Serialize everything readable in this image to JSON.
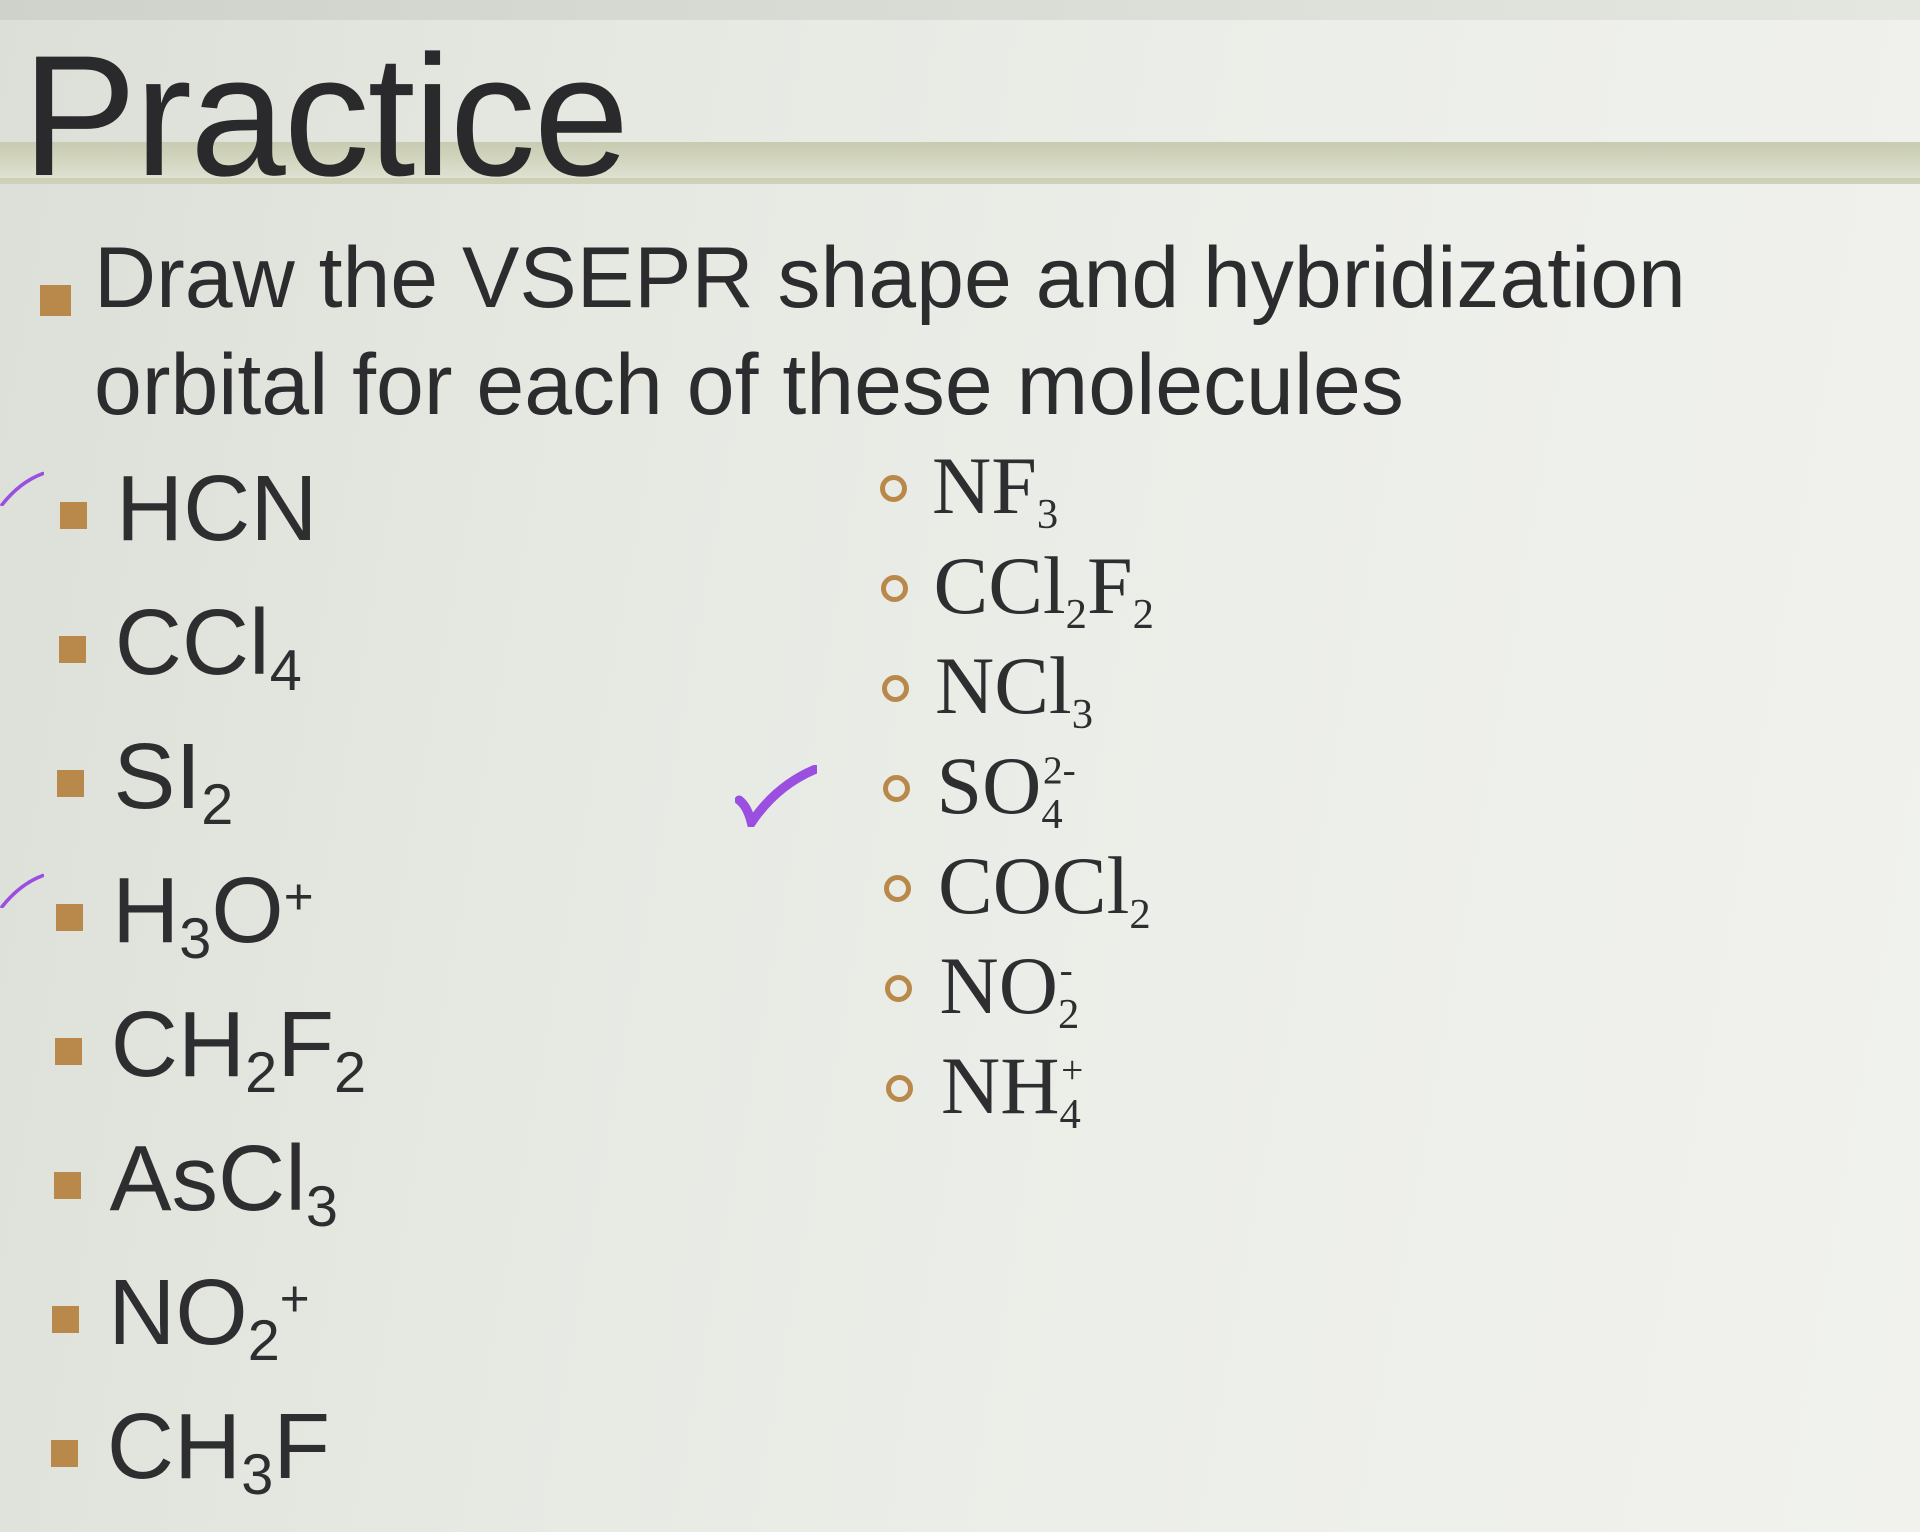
{
  "title": "Practice",
  "instruction": "Draw the VSEPR shape and hybridization orbital for each of these molecules",
  "colors": {
    "bullet": "#b8894a",
    "checkmark": "#9b4fe0",
    "text": "#2c2c2e"
  },
  "left_items": [
    {
      "parts": [
        {
          "base": "HCN"
        }
      ],
      "checked": true
    },
    {
      "parts": [
        {
          "base": "CCl"
        },
        {
          "sub": "4"
        }
      ],
      "checked": false
    },
    {
      "parts": [
        {
          "base": "SI"
        },
        {
          "sub": "2"
        }
      ],
      "checked": false
    },
    {
      "parts": [
        {
          "base": "H"
        },
        {
          "sub": "3"
        },
        {
          "base": "O"
        },
        {
          "sup": "+"
        }
      ],
      "checked": true
    },
    {
      "parts": [
        {
          "base": "CH"
        },
        {
          "sub": "2"
        },
        {
          "base": "F"
        },
        {
          "sub": "2"
        }
      ],
      "checked": false
    },
    {
      "parts": [
        {
          "base": "AsCl"
        },
        {
          "sub": "3"
        }
      ],
      "checked": false
    },
    {
      "parts": [
        {
          "base": "NO"
        },
        {
          "sub": "2"
        },
        {
          "sup": "+"
        }
      ],
      "checked": false
    },
    {
      "parts": [
        {
          "base": "CH"
        },
        {
          "sub": "3"
        },
        {
          "base": "F"
        }
      ],
      "checked": false
    }
  ],
  "right_items": [
    {
      "parts": [
        {
          "base": "NF"
        },
        {
          "sub": "3"
        }
      ],
      "checked": false
    },
    {
      "parts": [
        {
          "base": "CCl"
        },
        {
          "sub": "2"
        },
        {
          "base": "F"
        },
        {
          "sub": "2"
        }
      ],
      "checked": false
    },
    {
      "parts": [
        {
          "base": "NCl"
        },
        {
          "sub": "3"
        }
      ],
      "checked": false
    },
    {
      "parts": [
        {
          "base": "SO"
        },
        {
          "sub": "4"
        },
        {
          "sup": "2-"
        }
      ],
      "checked": true
    },
    {
      "parts": [
        {
          "base": "COCl"
        },
        {
          "sub": "2"
        }
      ],
      "checked": false
    },
    {
      "parts": [
        {
          "base": "NO"
        },
        {
          "sub": "2"
        },
        {
          "sup": "-"
        }
      ],
      "checked": false
    },
    {
      "parts": [
        {
          "base": "NH"
        },
        {
          "sub": "4"
        },
        {
          "sup": "+"
        }
      ],
      "checked": false
    }
  ]
}
